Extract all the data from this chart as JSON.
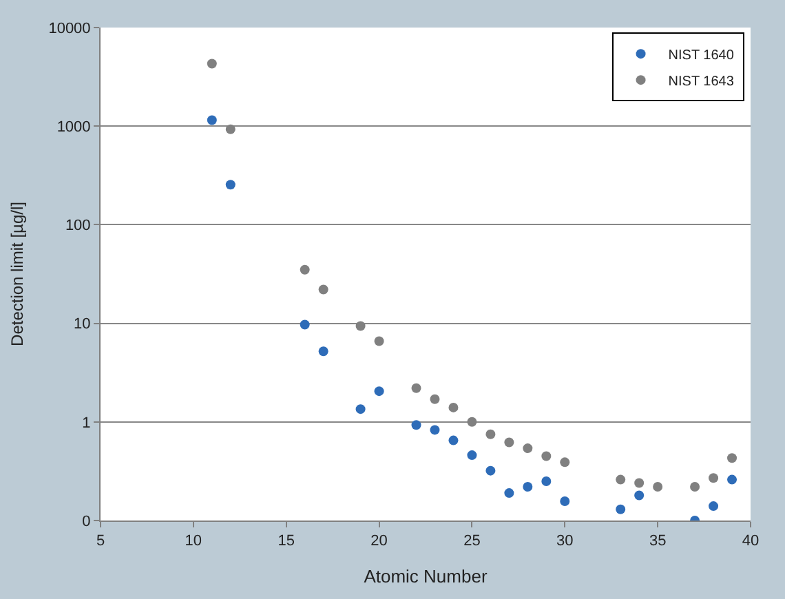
{
  "chart_data": {
    "type": "scatter",
    "xlabel": "Atomic Number",
    "ylabel": "Detection limit [µg/l]",
    "x": [
      11,
      12,
      16,
      17,
      19,
      20,
      22,
      23,
      24,
      25,
      26,
      27,
      28,
      29,
      30,
      33,
      34,
      37,
      38,
      39
    ],
    "series": [
      {
        "name": "NIST 1640",
        "color": "#2e6cb8",
        "values": [
          1150,
          255,
          9.7,
          5.2,
          1.35,
          2.05,
          0.93,
          0.83,
          0.65,
          0.46,
          0.32,
          0.19,
          0.22,
          0.25,
          0.157,
          0.13,
          0.18,
          0.1,
          0.14,
          0.26
        ]
      },
      {
        "name": "NIST 1643",
        "color": "#808080",
        "x": [
          11,
          12,
          16,
          17,
          19,
          20,
          22,
          23,
          24,
          25,
          26,
          27,
          28,
          29,
          30,
          33,
          34,
          35,
          37,
          38,
          39
        ],
        "values": [
          4300,
          930,
          35,
          22,
          9.4,
          6.6,
          2.2,
          1.7,
          1.4,
          1.0,
          0.75,
          0.62,
          0.54,
          0.45,
          0.39,
          0.26,
          0.24,
          0.22,
          0.22,
          0.27,
          0.43
        ]
      }
    ],
    "log": "y",
    "xlim": [
      5,
      40
    ],
    "xticks": [
      5,
      10,
      15,
      20,
      25,
      30,
      35,
      40
    ],
    "ylim": [
      0.1,
      10000
    ],
    "yticks": [
      {
        "value": 0.1,
        "label": "0"
      },
      1,
      10,
      100,
      1000,
      10000
    ],
    "grid": "y",
    "legend": "top right",
    "marker": "circle"
  }
}
